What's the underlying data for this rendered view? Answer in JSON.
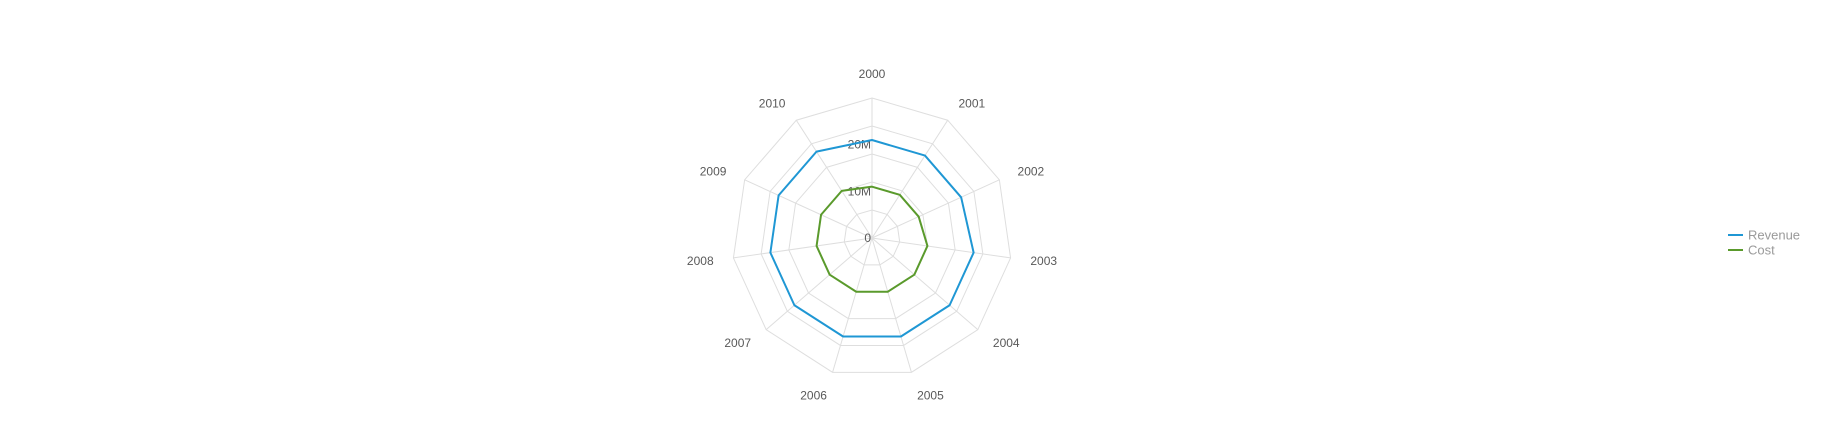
{
  "chart_data": {
    "type": "radar",
    "categories": [
      "2000",
      "2001",
      "2002",
      "2003",
      "2004",
      "2005",
      "2006",
      "2007",
      "2008",
      "2009",
      "2010"
    ],
    "radial_axis": {
      "min": 0,
      "max": 30000000,
      "ticks": [
        0,
        10000000,
        20000000
      ],
      "tick_labels": [
        "0",
        "10M",
        "20M"
      ]
    },
    "grid": true,
    "legend": {
      "position": "right"
    },
    "series": [
      {
        "name": "Revenue",
        "color": "#1f97d4",
        "values": [
          21000000,
          21000000,
          21000000,
          22000000,
          22000000,
          22000000,
          22000000,
          22000000,
          22000000,
          22000000,
          22000000
        ]
      },
      {
        "name": "Cost",
        "color": "#5a9a2c",
        "values": [
          11000000,
          11000000,
          11000000,
          12000000,
          12000000,
          12000000,
          12000000,
          12000000,
          12000000,
          12000000,
          12000000
        ]
      }
    ]
  }
}
